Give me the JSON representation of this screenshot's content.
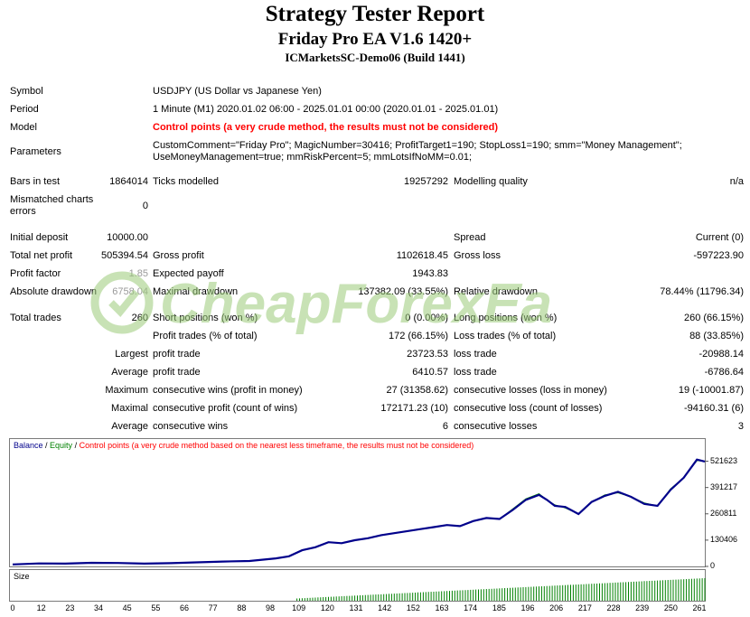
{
  "header": {
    "title": "Strategy Tester Report",
    "expert": "Friday Pro EA V1.6 1420+",
    "server": "ICMarketsSC-Demo06 (Build 1441)"
  },
  "settings": {
    "symbol_label": "Symbol",
    "symbol_value": "USDJPY (US Dollar vs Japanese Yen)",
    "period_label": "Period",
    "period_value": "1 Minute (M1) 2020.01.02 06:00 - 2025.01.01 00:00 (2020.01.01 - 2025.01.01)",
    "model_label": "Model",
    "model_value": "Control points (a very crude method, the results must not be considered)",
    "parameters_label": "Parameters",
    "parameters_line1": "CustomComment=\"Friday Pro\"; MagicNumber=30416; ProfitTarget1=190; StopLoss1=190; smm=\"Money Management\";",
    "parameters_line2": "UseMoneyManagement=true; mmRiskPercent=5; mmLotsIfNoMM=0.01;"
  },
  "bars": {
    "bars_label": "Bars in test",
    "bars_value": "1864014",
    "ticks_label": "Ticks modelled",
    "ticks_value": "19257292",
    "quality_label": "Modelling quality",
    "quality_value": "n/a",
    "mismatch_label1": "Mismatched charts",
    "mismatch_label2": "errors",
    "mismatch_value": "0"
  },
  "results": {
    "initial_deposit_label": "Initial deposit",
    "initial_deposit": "10000.00",
    "spread_label": "Spread",
    "spread_value": "Current (0)",
    "total_net_profit_label": "Total net profit",
    "total_net_profit": "505394.54",
    "gross_profit_label": "Gross profit",
    "gross_profit": "1102618.45",
    "gross_loss_label": "Gross loss",
    "gross_loss": "-597223.90",
    "profit_factor_label": "Profit factor",
    "profit_factor": "1.85",
    "expected_payoff_label": "Expected payoff",
    "expected_payoff": "1943.83",
    "absolute_drawdown_label": "Absolute drawdown",
    "absolute_drawdown": "6758.04",
    "maximal_drawdown_label": "Maximal drawdown",
    "maximal_drawdown": "137382.09 (33.55%)",
    "relative_drawdown_label": "Relative drawdown",
    "relative_drawdown": "78.44% (11796.34)",
    "total_trades_label": "Total trades",
    "total_trades": "260",
    "short_label": "Short positions (won %)",
    "short_value": "0 (0.00%)",
    "long_label": "Long positions (won %)",
    "long_value": "260 (66.15%)",
    "profit_trades_label": "Profit trades (% of total)",
    "profit_trades": "172 (66.15%)",
    "loss_trades_label": "Loss trades (% of total)",
    "loss_trades": "88 (33.85%)",
    "largest_label": "Largest",
    "largest_profit_label": "profit trade",
    "largest_profit": "23723.53",
    "largest_loss_label": "loss trade",
    "largest_loss": "-20988.14",
    "average_label": "Average",
    "average_profit_label": "profit trade",
    "average_profit": "6410.57",
    "average_loss_label": "loss trade",
    "average_loss": "-6786.64",
    "maximum_label": "Maximum",
    "max_cons_wins_label": "consecutive wins (profit in money)",
    "max_cons_wins": "27 (31358.62)",
    "max_cons_losses_label": "consecutive losses (loss in money)",
    "max_cons_losses": "19 (-10001.87)",
    "maximal_label": "Maximal",
    "maximal_cons_profit_label": "consecutive profit (count of wins)",
    "maximal_cons_profit": "172171.23 (10)",
    "maximal_cons_loss_label": "consecutive loss (count of losses)",
    "maximal_cons_loss": "-94160.31 (6)",
    "avg_cons_label": "Average",
    "avg_cons_wins_label": "consecutive wins",
    "avg_cons_wins": "6",
    "avg_cons_losses_label": "consecutive losses",
    "avg_cons_losses": "3"
  },
  "watermark": "CheapForexEa",
  "colors": {
    "balance": "#00008b",
    "equity": "#008000",
    "warning": "#ff0000",
    "watermark": "#9ccc7a"
  },
  "chart_legend": {
    "balance": "Balance",
    "sep1": " / ",
    "equity": "Equity",
    "sep2": " / ",
    "control": "Control points (a very crude method based on the nearest less timeframe, the results must not be considered)"
  },
  "size_label": "Size",
  "chart_data": {
    "type": "line",
    "title": "",
    "xlabel": "",
    "ylabel": "",
    "y_ticks": [
      "521623",
      "391217",
      "260811",
      "130406",
      "0"
    ],
    "x_ticks": [
      "0",
      "12",
      "23",
      "34",
      "45",
      "55",
      "66",
      "77",
      "88",
      "98",
      "109",
      "120",
      "131",
      "142",
      "152",
      "163",
      "174",
      "185",
      "196",
      "206",
      "217",
      "228",
      "239",
      "250",
      "261"
    ],
    "xlim": [
      0,
      263
    ],
    "ylim": [
      0,
      560000
    ],
    "series": [
      {
        "name": "Balance",
        "x": [
          0,
          10,
          20,
          30,
          40,
          50,
          60,
          70,
          80,
          90,
          100,
          105,
          110,
          115,
          120,
          125,
          130,
          135,
          140,
          145,
          150,
          155,
          160,
          165,
          170,
          175,
          180,
          185,
          190,
          195,
          200,
          203,
          206,
          210,
          215,
          220,
          225,
          230,
          235,
          240,
          245,
          250,
          255,
          260,
          263
        ],
        "y": [
          10000,
          15000,
          14000,
          18000,
          17000,
          14000,
          16000,
          20000,
          24000,
          27000,
          40000,
          50000,
          80000,
          95000,
          120000,
          115000,
          130000,
          140000,
          155000,
          165000,
          175000,
          185000,
          195000,
          205000,
          200000,
          225000,
          240000,
          235000,
          280000,
          330000,
          355000,
          330000,
          300000,
          295000,
          260000,
          320000,
          350000,
          370000,
          345000,
          310000,
          300000,
          380000,
          440000,
          530000,
          520000
        ]
      },
      {
        "name": "Equity",
        "x": [
          0,
          10,
          20,
          30,
          40,
          50,
          60,
          70,
          80,
          90,
          100,
          105,
          110,
          115,
          120,
          125,
          130,
          135,
          140,
          145,
          150,
          155,
          160,
          165,
          170,
          175,
          180,
          185,
          190,
          195,
          200,
          203,
          206,
          210,
          215,
          220,
          225,
          230,
          235,
          240,
          245,
          250,
          255,
          260,
          263
        ],
        "y": [
          10000,
          15000,
          14000,
          18000,
          17000,
          14000,
          16000,
          20000,
          24000,
          27000,
          40000,
          50000,
          80000,
          95000,
          120000,
          115000,
          130000,
          140000,
          155000,
          165000,
          175000,
          185000,
          195000,
          205000,
          200000,
          225000,
          240000,
          235000,
          285000,
          335000,
          360000,
          330000,
          305000,
          290000,
          260000,
          320000,
          355000,
          365000,
          345000,
          315000,
          300000,
          385000,
          440000,
          525000,
          520000
        ]
      }
    ],
    "size_series": {
      "name": "Size",
      "start_index": 108,
      "end_index": 263,
      "min_value": 0.1,
      "max_value": 1.0
    }
  }
}
